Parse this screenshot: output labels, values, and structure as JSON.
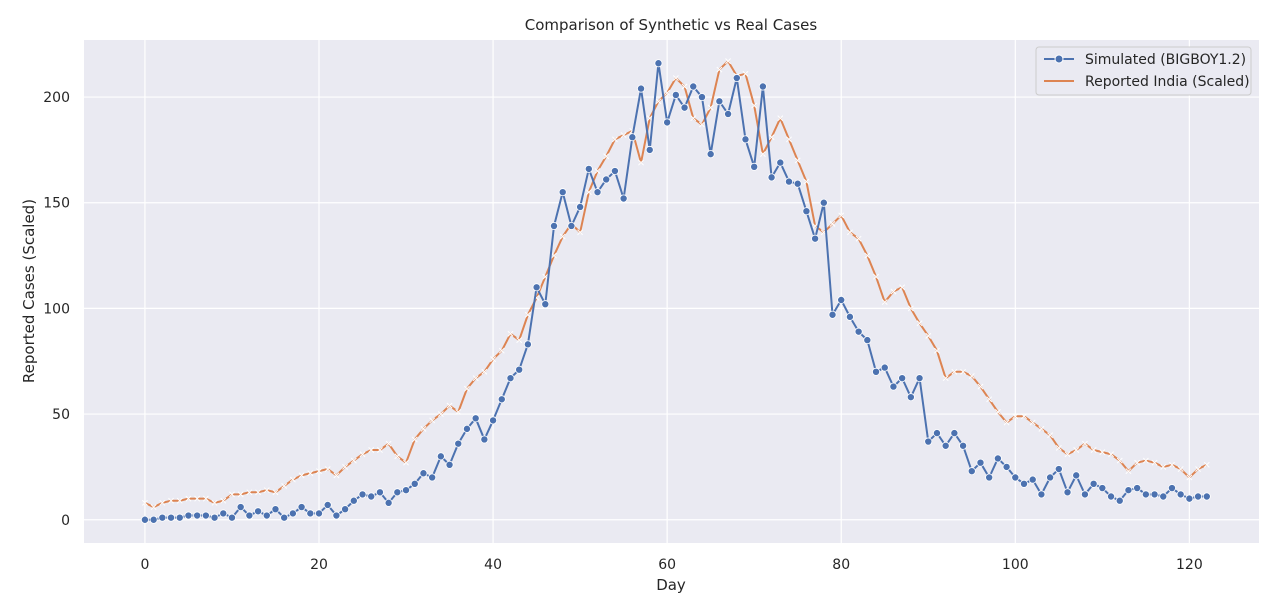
{
  "chart_data": {
    "type": "line",
    "title": "Comparison of Synthetic vs Real Cases",
    "xlabel": "Day",
    "ylabel": "Reported Cases (Scaled)",
    "xlim": [
      -7,
      128
    ],
    "ylim": [
      -11,
      227
    ],
    "xticks": [
      0,
      20,
      40,
      60,
      80,
      100,
      120
    ],
    "yticks": [
      0,
      50,
      100,
      150,
      200
    ],
    "grid": true,
    "legend_position": "top-right",
    "x": [
      0,
      1,
      2,
      3,
      4,
      5,
      6,
      7,
      8,
      9,
      10,
      11,
      12,
      13,
      14,
      15,
      16,
      17,
      18,
      19,
      20,
      21,
      22,
      23,
      24,
      25,
      26,
      27,
      28,
      29,
      30,
      31,
      32,
      33,
      34,
      35,
      36,
      37,
      38,
      39,
      40,
      41,
      42,
      43,
      44,
      45,
      46,
      47,
      48,
      49,
      50,
      51,
      52,
      53,
      54,
      55,
      56,
      57,
      58,
      59,
      60,
      61,
      62,
      63,
      64,
      65,
      66,
      67,
      68,
      69,
      70,
      71,
      72,
      73,
      74,
      75,
      76,
      77,
      78,
      79,
      80,
      81,
      82,
      83,
      84,
      85,
      86,
      87,
      88,
      89,
      90,
      91,
      92,
      93,
      94,
      95,
      96,
      97,
      98,
      99,
      100,
      101,
      102,
      103,
      104,
      105,
      106,
      107,
      108,
      109,
      110,
      111,
      112,
      113,
      114,
      115,
      116,
      117,
      118,
      119,
      120,
      121,
      122
    ],
    "series": [
      {
        "name": "Simulated (BIGBOY1.2)",
        "color": "#4c72b0",
        "marker": "circle",
        "values": [
          0,
          0,
          1,
          1,
          1,
          2,
          2,
          2,
          1,
          3,
          1,
          6,
          2,
          4,
          2,
          5,
          1,
          3,
          6,
          3,
          3,
          7,
          2,
          5,
          9,
          12,
          11,
          13,
          8,
          13,
          14,
          17,
          22,
          20,
          30,
          26,
          36,
          43,
          48,
          38,
          47,
          57,
          67,
          71,
          83,
          110,
          102,
          139,
          155,
          139,
          148,
          166,
          155,
          161,
          165,
          152,
          181,
          204,
          175,
          216,
          188,
          201,
          195,
          205,
          200,
          173,
          198,
          192,
          209,
          180,
          167,
          205,
          162,
          169,
          160,
          159,
          146,
          133,
          150,
          97,
          104,
          96,
          89,
          85,
          70,
          72,
          63,
          67,
          58,
          67,
          37,
          41,
          35,
          41,
          35,
          23,
          27,
          20,
          29,
          25,
          20,
          17,
          19,
          12,
          20,
          24,
          13,
          21,
          12,
          17,
          15,
          11,
          9,
          14,
          15,
          12,
          12,
          11,
          15,
          12,
          10,
          11,
          11
        ]
      },
      {
        "name": "Reported India (Scaled)",
        "color": "#dd8452",
        "marker": "x",
        "values": [
          8,
          6,
          8,
          9,
          9,
          10,
          10,
          10,
          8,
          9,
          12,
          12,
          13,
          13,
          14,
          13,
          16,
          19,
          21,
          22,
          23,
          24,
          21,
          25,
          28,
          31,
          33,
          33,
          36,
          30,
          27,
          38,
          43,
          47,
          50,
          54,
          51,
          62,
          67,
          70,
          76,
          80,
          88,
          85,
          97,
          105,
          115,
          125,
          134,
          140,
          136,
          155,
          165,
          172,
          180,
          182,
          184,
          169,
          190,
          198,
          202,
          209,
          205,
          190,
          187,
          195,
          213,
          217,
          210,
          211,
          196,
          173,
          181,
          190,
          180,
          170,
          160,
          139,
          136,
          140,
          144,
          136,
          133,
          125,
          115,
          103,
          108,
          110,
          100,
          93,
          87,
          80,
          67,
          70,
          70,
          68,
          63,
          57,
          51,
          46,
          49,
          49,
          46,
          43,
          40,
          34,
          31,
          33,
          36,
          33,
          32,
          31,
          28,
          23,
          27,
          28,
          27,
          25,
          26,
          24,
          20,
          24,
          26
        ]
      }
    ]
  }
}
